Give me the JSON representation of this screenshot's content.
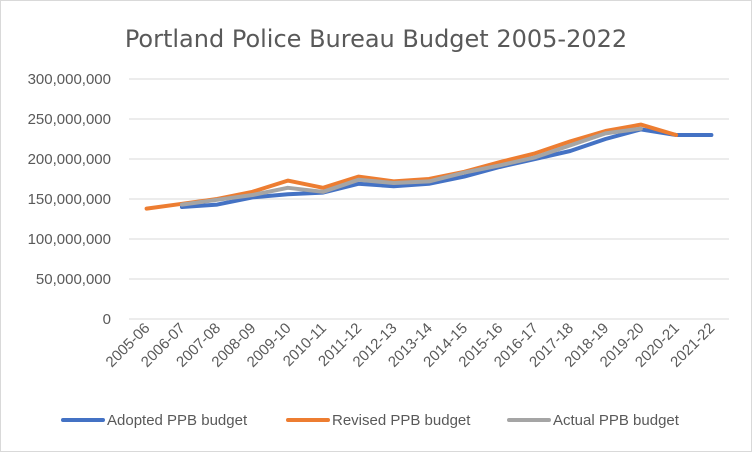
{
  "chart_data": {
    "type": "line",
    "title": "Portland Police Bureau Budget 2005-2022",
    "xlabel": "",
    "ylabel": "",
    "categories": [
      "2005-06",
      "2006-07",
      "2007-08",
      "2008-09",
      "2009-10",
      "2010-11",
      "2011-12",
      "2012-13",
      "2013-14",
      "2014-15",
      "2015-16",
      "2016-17",
      "2017-18",
      "2018-19",
      "2019-20",
      "2020-21",
      "2021-22"
    ],
    "yticks": [
      "0",
      "50,000,000",
      "100,000,000",
      "150,000,000",
      "200,000,000",
      "250,000,000",
      "300,000,000"
    ],
    "ylim": [
      0,
      300000000
    ],
    "grid": true,
    "legend_position": "bottom",
    "series": [
      {
        "name": "Adopted PPB budget",
        "color": "#4472c4",
        "values": [
          null,
          140000000,
          143000000,
          152000000,
          156000000,
          158000000,
          169000000,
          166000000,
          169000000,
          178000000,
          190000000,
          200000000,
          210000000,
          225000000,
          237000000,
          230000000,
          230000000
        ]
      },
      {
        "name": "Revised PPB budget",
        "color": "#ed7d31",
        "values": [
          138000000,
          144000000,
          150000000,
          159000000,
          173000000,
          164000000,
          178000000,
          172000000,
          175000000,
          184000000,
          196000000,
          207000000,
          222000000,
          235000000,
          243000000,
          230000000,
          null
        ]
      },
      {
        "name": "Actual PPB budget",
        "color": "#a5a5a5",
        "values": [
          null,
          143000000,
          149000000,
          155000000,
          164000000,
          159000000,
          174000000,
          170000000,
          172000000,
          183000000,
          192000000,
          202000000,
          217000000,
          232000000,
          238000000,
          null,
          null
        ]
      }
    ]
  }
}
